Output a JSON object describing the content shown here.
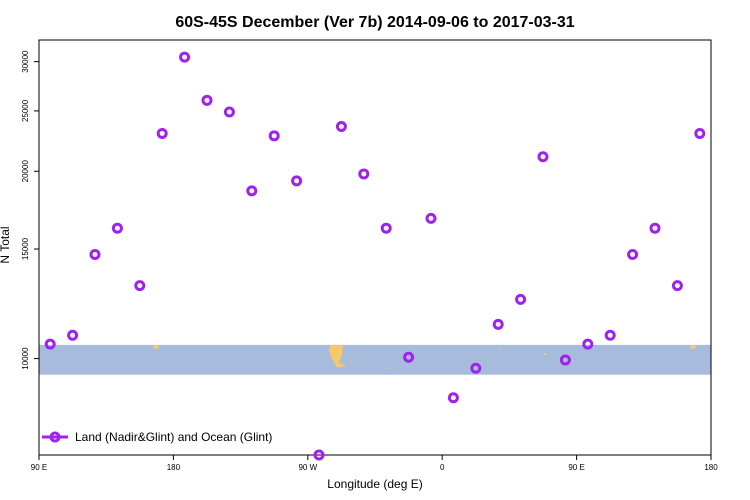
{
  "chart_data": {
    "type": "scatter",
    "title": "60S-45S December (Ver 7b)   2014-09-06 to 2017-03-31",
    "xlabel": "Longitude (deg E)",
    "ylabel": "N Total",
    "x_ticks": [
      {
        "value": 90,
        "label": "90 E"
      },
      {
        "value": 180,
        "label": "180"
      },
      {
        "value": 270,
        "label": "90 W"
      },
      {
        "value": 360,
        "label": "0"
      },
      {
        "value": 450,
        "label": "90 E"
      },
      {
        "value": 540,
        "label": "180"
      }
    ],
    "y_ticks": [
      10000,
      15000,
      20000,
      25000,
      30000
    ],
    "y_scale": "log",
    "xlim": [
      90,
      540
    ],
    "ylim": [
      7000,
      32500
    ],
    "legend": {
      "label": "Land (Nadir&Glint) and Ocean (Glint)",
      "position": "bottom-left"
    },
    "series": [
      {
        "name": "Land (Nadir&Glint) and Ocean (Glint)",
        "color": "#a020f0",
        "points": [
          {
            "x": 97.5,
            "y": 10550
          },
          {
            "x": 112.5,
            "y": 10900
          },
          {
            "x": 127.5,
            "y": 14700
          },
          {
            "x": 142.5,
            "y": 16200
          },
          {
            "x": 157.5,
            "y": 13100
          },
          {
            "x": 172.5,
            "y": 23000
          },
          {
            "x": 187.5,
            "y": 30500
          },
          {
            "x": 202.5,
            "y": 26000
          },
          {
            "x": 217.5,
            "y": 24900
          },
          {
            "x": 232.5,
            "y": 18600
          },
          {
            "x": 247.5,
            "y": 22800
          },
          {
            "x": 262.5,
            "y": 19300
          },
          {
            "x": 277.5,
            "y": 7000
          },
          {
            "x": 292.5,
            "y": 23600
          },
          {
            "x": 307.5,
            "y": 19800
          },
          {
            "x": 322.5,
            "y": 16200
          },
          {
            "x": 337.5,
            "y": 10050
          },
          {
            "x": 352.5,
            "y": 16800
          },
          {
            "x": 367.5,
            "y": 8650
          },
          {
            "x": 382.5,
            "y": 9650
          },
          {
            "x": 397.5,
            "y": 11350
          },
          {
            "x": 412.5,
            "y": 12450
          },
          {
            "x": 427.5,
            "y": 21100
          },
          {
            "x": 442.5,
            "y": 9950
          },
          {
            "x": 457.5,
            "y": 10550
          },
          {
            "x": 472.5,
            "y": 10900
          },
          {
            "x": 487.5,
            "y": 14700
          },
          {
            "x": 502.5,
            "y": 16200
          },
          {
            "x": 517.5,
            "y": 13100
          },
          {
            "x": 532.5,
            "y": 23000
          }
        ]
      }
    ],
    "background": {
      "ocean_color": "#a7bcdc",
      "land_color": "#f5c86e",
      "band_y_range": [
        9420,
        10520
      ]
    },
    "grid": false
  }
}
